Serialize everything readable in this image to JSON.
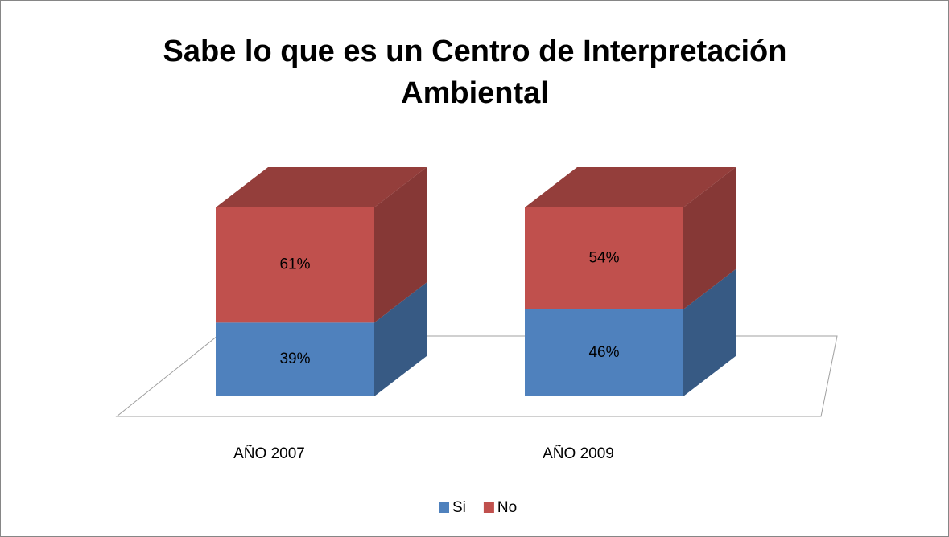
{
  "chart_data": {
    "type": "bar",
    "stacked": true,
    "three_d": true,
    "title": "Sabe lo que es un Centro de Interpretación Ambiental",
    "categories": [
      "AÑO 2007",
      "AÑO 2009"
    ],
    "series": [
      {
        "name": "Si",
        "color": "#4f81bd",
        "values": [
          39,
          46
        ],
        "value_labels": [
          "39%",
          "46%"
        ]
      },
      {
        "name": "No",
        "color": "#c0504d",
        "values": [
          61,
          54
        ],
        "value_labels": [
          "61%",
          "54%"
        ]
      }
    ],
    "ylim": [
      0,
      100
    ],
    "legend": "bottom"
  }
}
